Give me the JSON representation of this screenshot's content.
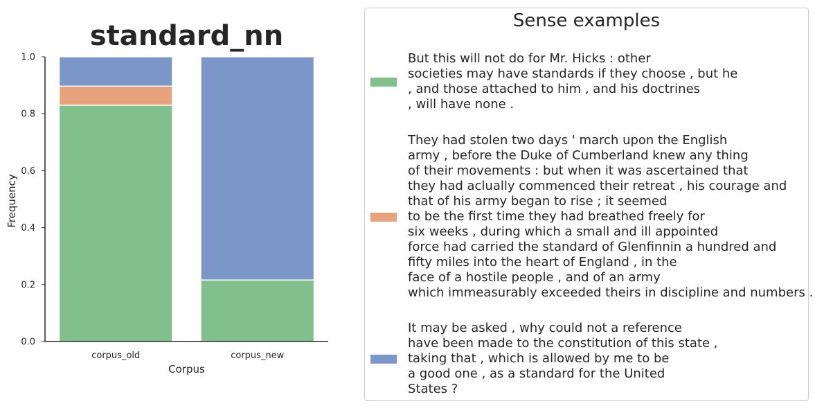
{
  "chart_data": {
    "type": "bar",
    "stacked": true,
    "title": "standard_nn",
    "xlabel": "Corpus",
    "ylabel": "Frequency",
    "categories": [
      "corpus_old",
      "corpus_new"
    ],
    "ylim": [
      0,
      1.0
    ],
    "yticks": [
      "0.0",
      "0.2",
      "0.4",
      "0.6",
      "0.8",
      "1.0"
    ],
    "series": [
      {
        "color": "#81bf8d",
        "values": [
          0.83,
          0.216
        ]
      },
      {
        "color": "#e6a37e",
        "values": [
          0.067,
          0.0
        ]
      },
      {
        "color": "#7b97c7",
        "values": [
          0.103,
          0.784
        ]
      }
    ],
    "grid": false
  },
  "legend": {
    "title": "Sense examples",
    "entries": [
      {
        "color": "#81bf8d",
        "lines": [
          "But this will not do for Mr. Hicks : other",
          "societies may have standards if they choose , but he",
          ", and those attached to him , and his doctrines",
          ", will have none ."
        ]
      },
      {
        "color": "#e6a37e",
        "lines": [
          "They had stolen two days ' march upon the English",
          "army , before the Duke of Cumberland knew any thing",
          "of their movements : but when it was ascertained that",
          "they had aclually commenced their retreat , his courage and",
          "that of his army began to rise ; it seemed",
          "to be the first time they had breathed freely for",
          "six weeks , during which a small and ill appointed",
          "force had carried the standard of Glenfinnin a hundred and",
          "fifty miles into the heart of England , in the",
          "face of a hostile people , and of an army",
          "which immeasurably exceeded theirs in discipline and numbers ."
        ]
      },
      {
        "color": "#7b97c7",
        "lines": [
          "It may be asked , why could not a reference",
          "have been made to the constitution of this state ,",
          "taking that , which is allowed by me to be",
          "a good one , as a standard for the United",
          "States ?"
        ]
      }
    ]
  }
}
